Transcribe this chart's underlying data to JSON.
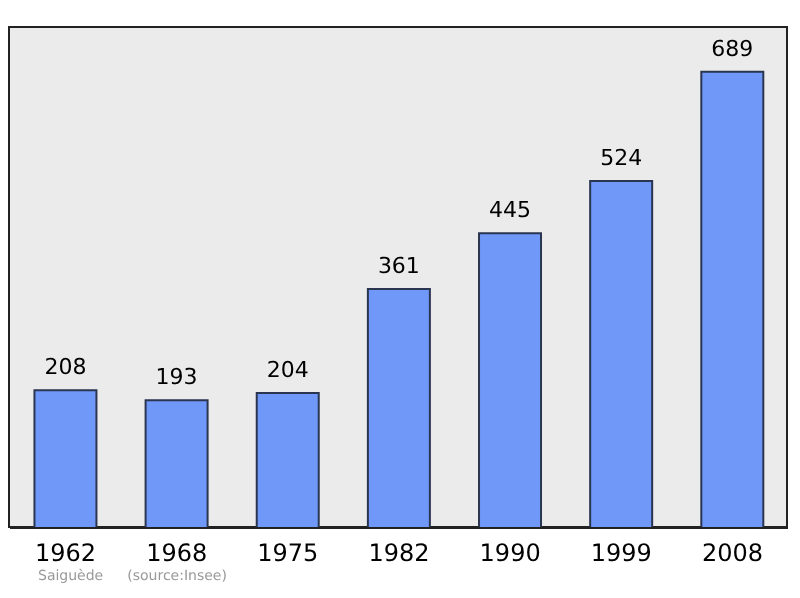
{
  "chart_data": {
    "type": "bar",
    "categories": [
      "1962",
      "1968",
      "1975",
      "1982",
      "1990",
      "1999",
      "2008"
    ],
    "values": [
      208,
      193,
      204,
      361,
      445,
      524,
      689
    ],
    "color": "#6f98f8",
    "data_labels": true,
    "annotations": [
      "Saiguède",
      "(source:Insee)"
    ]
  }
}
